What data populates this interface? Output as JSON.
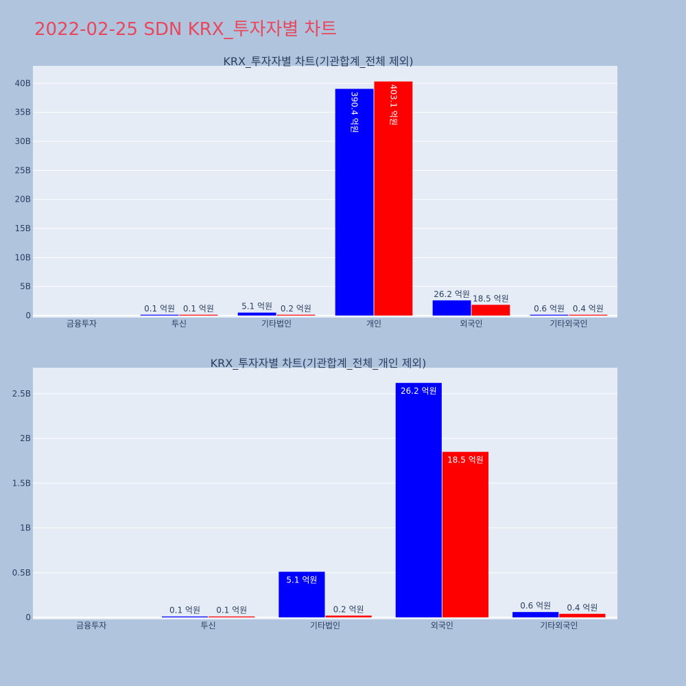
{
  "page_title": "2022-02-25 SDN KRX_투자자별 차트",
  "colors": {
    "series_a": "#0000ff",
    "series_b": "#ff0000"
  },
  "chart_data": [
    {
      "type": "bar",
      "title": "KRX_투자자별 차트(기관합계_전체 제외)",
      "categories": [
        "금융투자",
        "투신",
        "기타법인",
        "개인",
        "외국인",
        "기타외국인"
      ],
      "ytick_labels": [
        "0",
        "5B",
        "10B",
        "15B",
        "20B",
        "25B",
        "30B",
        "35B",
        "40B"
      ],
      "ytick_values": [
        0,
        5,
        10,
        15,
        20,
        25,
        30,
        35,
        40
      ],
      "ylim": [
        0,
        43
      ],
      "value_unit": "B",
      "series": [
        {
          "color": "#0000ff",
          "values": [
            0,
            0.01,
            0.51,
            39.04,
            2.62,
            0.06
          ],
          "labels": [
            "",
            "0.1 억원",
            "5.1 억원",
            "390.4 억원",
            "26.2 억원",
            "0.6 억원"
          ]
        },
        {
          "color": "#ff0000",
          "values": [
            0,
            0.01,
            0.02,
            40.31,
            1.85,
            0.04
          ],
          "labels": [
            "",
            "0.1 억원",
            "0.2 억원",
            "403.1 억원",
            "18.5 억원",
            "0.4 억원"
          ]
        }
      ]
    },
    {
      "type": "bar",
      "title": "KRX_투자자별 차트(기관합계_전체_개인 제외)",
      "categories": [
        "금융투자",
        "투신",
        "기타법인",
        "외국인",
        "기타외국인"
      ],
      "ytick_labels": [
        "0",
        "0.5B",
        "1B",
        "1.5B",
        "2B",
        "2.5B"
      ],
      "ytick_values": [
        0,
        0.5,
        1,
        1.5,
        2,
        2.5
      ],
      "ylim": [
        0,
        2.79
      ],
      "value_unit": "B",
      "series": [
        {
          "color": "#0000ff",
          "values": [
            0,
            0.01,
            0.51,
            2.62,
            0.06
          ],
          "labels": [
            "",
            "0.1 억원",
            "5.1 억원",
            "26.2 억원",
            "0.6 억원"
          ]
        },
        {
          "color": "#ff0000",
          "values": [
            0,
            0.01,
            0.02,
            1.85,
            0.04
          ],
          "labels": [
            "",
            "0.1 억원",
            "0.2 억원",
            "18.5 억원",
            "0.4 억원"
          ]
        }
      ]
    }
  ]
}
